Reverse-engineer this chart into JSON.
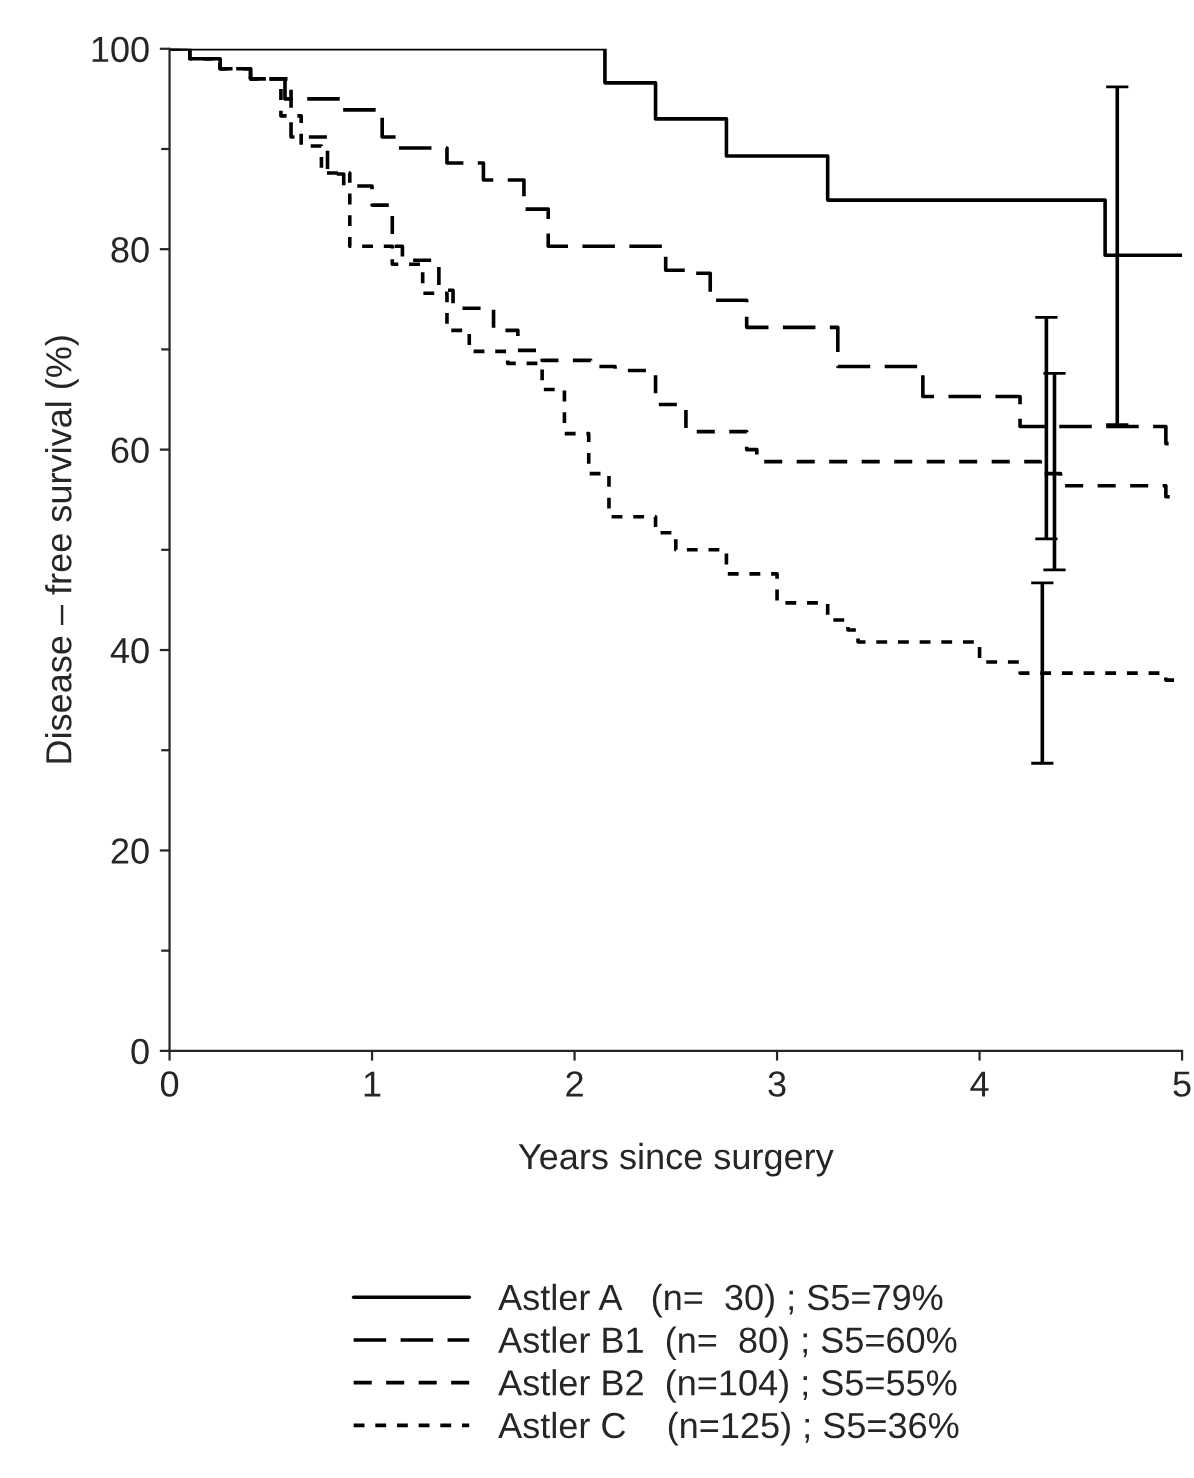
{
  "chart_data": {
    "type": "step",
    "xlabel": "Years since surgery",
    "ylabel": "Disease – free survival (%)",
    "xlim": [
      0,
      5
    ],
    "ylim": [
      0,
      100
    ],
    "xticks": [
      0,
      1,
      2,
      3,
      4,
      5
    ],
    "yticks": [
      0,
      {
        "value": 10,
        "label": null
      },
      20,
      {
        "value": 30,
        "label": null
      },
      40,
      {
        "value": 50,
        "label": null
      },
      60,
      {
        "value": 70,
        "label": null
      },
      80,
      {
        "value": 90,
        "label": null
      },
      100
    ],
    "grid": false,
    "legend": "bottom",
    "marker": "none",
    "series": [
      {
        "name": "Astler A   (n=  30) ; S5=79%",
        "color": "#000000",
        "line_style": "solid",
        "x": [
          0,
          2.15,
          2.4,
          2.75,
          3.25,
          4.62,
          4.68,
          5
        ],
        "values": [
          100,
          96.6,
          93.0,
          89.3,
          84.9,
          79.4,
          79.4,
          79.4
        ],
        "errors": [
          null,
          null,
          null,
          null,
          null,
          null,
          [
            62.5,
            96.2
          ],
          null
        ]
      },
      {
        "name": "Astler B1  (n=  80) ; S5=60%",
        "color": "#000000",
        "line_style": "dashed",
        "x": [
          0,
          0.1,
          0.25,
          0.4,
          0.57,
          0.85,
          1.05,
          1.12,
          1.37,
          1.55,
          1.75,
          1.87,
          2.45,
          2.55,
          2.67,
          2.85,
          3.3,
          3.72,
          4.2,
          4.33,
          4.92,
          5
        ],
        "values": [
          100,
          99,
          98,
          97,
          95.0,
          93.9,
          91.2,
          90.1,
          88.6,
          86.9,
          84,
          80.3,
          77.9,
          77.6,
          74.9,
          72.2,
          68.3,
          65.3,
          62.3,
          62.3,
          60.6,
          60.6
        ],
        "errors": [
          null,
          null,
          null,
          null,
          null,
          null,
          null,
          null,
          null,
          null,
          null,
          null,
          null,
          null,
          null,
          null,
          null,
          null,
          null,
          [
            51.1,
            73.2
          ],
          null,
          null
        ]
      },
      {
        "name": "Astler B2  (n=104) ; S5=55%",
        "color": "#000000",
        "line_style": "dashed",
        "x": [
          0,
          0.1,
          0.25,
          0.4,
          0.6,
          0.78,
          0.86,
          1.0,
          1.1,
          1.15,
          1.33,
          1.4,
          1.6,
          1.72,
          1.84,
          2.08,
          2.2,
          2.4,
          2.55,
          2.85,
          2.9,
          4.3,
          4.37,
          4.4,
          4.92,
          5
        ],
        "values": [
          100,
          99,
          98,
          97,
          91.2,
          87.5,
          86.3,
          84.4,
          80.3,
          78.9,
          75.9,
          74.1,
          71.9,
          69.9,
          68.9,
          68.3,
          67.9,
          64.5,
          61.8,
          60.0,
          58.8,
          57.6,
          57.6,
          56.4,
          55.3,
          55.3
        ],
        "errors": [
          null,
          null,
          null,
          null,
          null,
          null,
          null,
          null,
          null,
          null,
          null,
          null,
          null,
          null,
          null,
          null,
          null,
          null,
          null,
          null,
          null,
          null,
          [
            48.0,
            67.6
          ],
          null,
          null,
          null
        ]
      },
      {
        "name": "Astler C    (n=125) ; S5=36%",
        "color": "#000000",
        "line_style": "dotted",
        "x": [
          0,
          0.1,
          0.25,
          0.4,
          0.55,
          0.65,
          0.75,
          0.89,
          1.1,
          1.25,
          1.37,
          1.48,
          1.67,
          1.84,
          1.95,
          2.07,
          2.17,
          2.4,
          2.5,
          2.75,
          3.0,
          3.25,
          3.35,
          3.4,
          4.0,
          4.2,
          4.31,
          4.92,
          5
        ],
        "values": [
          100,
          99,
          98,
          97,
          93.3,
          90.3,
          87.6,
          80.3,
          78.5,
          75.6,
          71.9,
          69.8,
          68.6,
          66.0,
          61.6,
          57.6,
          53.3,
          51.7,
          50.0,
          47.6,
          44.7,
          43.0,
          42.0,
          40.8,
          38.8,
          37.7,
          37.7,
          37.0,
          37.0
        ],
        "errors": [
          null,
          null,
          null,
          null,
          null,
          null,
          null,
          null,
          null,
          null,
          null,
          null,
          null,
          null,
          null,
          null,
          null,
          null,
          null,
          null,
          null,
          null,
          null,
          null,
          null,
          null,
          [
            28.7,
            46.7
          ],
          null,
          null
        ]
      }
    ]
  }
}
